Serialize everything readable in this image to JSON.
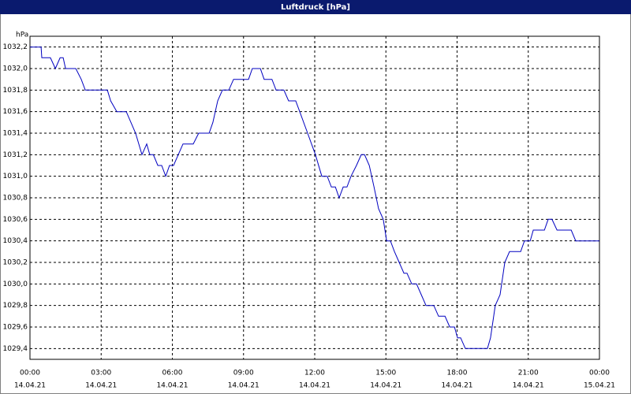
{
  "chart_data": {
    "type": "line",
    "title": "Luftdruck [hPa]",
    "y_label": "hPa",
    "color": "#0000c0",
    "grid": true,
    "x": [
      0,
      0.47,
      0.5,
      0.86,
      1.07,
      1.27,
      1.4,
      1.5,
      1.93,
      2.16,
      2.33,
      3.26,
      3.4,
      3.66,
      4.06,
      4.45,
      4.72,
      4.92,
      5.05,
      5.2,
      5.39,
      5.55,
      5.72,
      5.88,
      6.05,
      6.25,
      6.45,
      6.88,
      7.11,
      7.55,
      7.71,
      7.91,
      8.11,
      8.38,
      8.58,
      9.21,
      9.37,
      9.71,
      9.87,
      10.2,
      10.37,
      10.7,
      10.9,
      11.2,
      11.37,
      11.7,
      12.03,
      12.3,
      12.53,
      12.7,
      12.87,
      13.03,
      13.2,
      13.36,
      13.53,
      13.76,
      13.96,
      14.1,
      14.3,
      14.5,
      14.69,
      14.89,
      15.03,
      15.19,
      15.36,
      15.56,
      15.76,
      15.89,
      16.09,
      16.29,
      16.49,
      16.69,
      17.02,
      17.22,
      17.49,
      17.69,
      17.89,
      18.02,
      18.15,
      18.35,
      19.28,
      19.41,
      19.61,
      19.81,
      20.01,
      20.21,
      20.68,
      20.84,
      21.08,
      21.21,
      21.68,
      21.84,
      22.0,
      22.21,
      22.81,
      23.0,
      24
    ],
    "values": [
      1032.2,
      1032.2,
      1032.1,
      1032.1,
      1032.0,
      1032.1,
      1032.1,
      1032.0,
      1032.0,
      1031.9,
      1031.8,
      1031.8,
      1031.7,
      1031.6,
      1031.6,
      1031.4,
      1031.2,
      1031.3,
      1031.2,
      1031.2,
      1031.1,
      1031.1,
      1031.0,
      1031.1,
      1031.1,
      1031.2,
      1031.3,
      1031.3,
      1031.4,
      1031.4,
      1031.5,
      1031.7,
      1031.8,
      1031.8,
      1031.9,
      1031.9,
      1032.0,
      1032.0,
      1031.9,
      1031.9,
      1031.8,
      1031.8,
      1031.7,
      1031.7,
      1031.6,
      1031.4,
      1031.2,
      1031.0,
      1031.0,
      1030.9,
      1030.9,
      1030.8,
      1030.9,
      1030.9,
      1031.0,
      1031.1,
      1031.2,
      1031.2,
      1031.1,
      1030.9,
      1030.7,
      1030.6,
      1030.4,
      1030.4,
      1030.3,
      1030.2,
      1030.1,
      1030.1,
      1030.0,
      1030.0,
      1029.9,
      1029.8,
      1029.8,
      1029.7,
      1029.7,
      1029.6,
      1029.6,
      1029.5,
      1029.5,
      1029.4,
      1029.4,
      1029.5,
      1029.8,
      1029.9,
      1030.2,
      1030.3,
      1030.3,
      1030.4,
      1030.4,
      1030.5,
      1030.5,
      1030.6,
      1030.6,
      1030.5,
      1030.5,
      1030.4,
      1030.4
    ],
    "xlim": [
      0,
      24
    ],
    "xticks": [
      {
        "value": 0,
        "label": "00:00"
      },
      {
        "value": 3,
        "label": "03:00"
      },
      {
        "value": 6,
        "label": "06:00"
      },
      {
        "value": 9,
        "label": "09:00"
      },
      {
        "value": 12,
        "label": "12:00"
      },
      {
        "value": 15,
        "label": "15:00"
      },
      {
        "value": 18,
        "label": "18:00"
      },
      {
        "value": 21,
        "label": "21:00"
      },
      {
        "value": 24,
        "label": "00:00"
      }
    ],
    "xtick_dates": [
      "14.04.21",
      "14.04.21",
      "14.04.21",
      "14.04.21",
      "14.04.21",
      "14.04.21",
      "14.04.21",
      "14.04.21",
      "15.04.21"
    ],
    "ylim": [
      1029.3,
      1032.3
    ],
    "yticks": [
      {
        "value": 1029.4,
        "label": "1029,4"
      },
      {
        "value": 1029.6,
        "label": "1029,6"
      },
      {
        "value": 1029.8,
        "label": "1029,8"
      },
      {
        "value": 1030.0,
        "label": "1030,0"
      },
      {
        "value": 1030.2,
        "label": "1030,2"
      },
      {
        "value": 1030.4,
        "label": "1030,4"
      },
      {
        "value": 1030.6,
        "label": "1030,6"
      },
      {
        "value": 1030.8,
        "label": "1030,8"
      },
      {
        "value": 1031.0,
        "label": "1031,0"
      },
      {
        "value": 1031.2,
        "label": "1031,2"
      },
      {
        "value": 1031.4,
        "label": "1031,4"
      },
      {
        "value": 1031.6,
        "label": "1031,6"
      },
      {
        "value": 1031.8,
        "label": "1031,8"
      },
      {
        "value": 1032.0,
        "label": "1032,0"
      },
      {
        "value": 1032.2,
        "label": "1032,2"
      }
    ]
  }
}
